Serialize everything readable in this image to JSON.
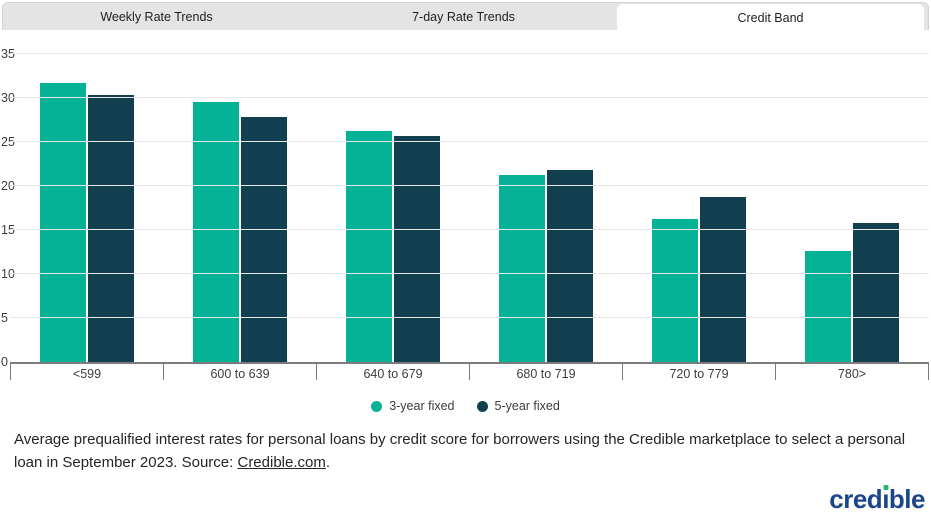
{
  "tabs": {
    "items": [
      {
        "label": "Weekly Rate Trends",
        "active": false
      },
      {
        "label": "7-day Rate Trends",
        "active": false
      },
      {
        "label": "Credit Band",
        "active": true
      }
    ]
  },
  "chart_data": {
    "type": "bar",
    "title": "",
    "categories": [
      "<599",
      "600 to 639",
      "640 to 679",
      "680 to 719",
      "720 to 779",
      "780>"
    ],
    "series": [
      {
        "name": "3-year fixed",
        "color": "#05b296",
        "values": [
          31.7,
          29.5,
          26.3,
          21.2,
          16.2,
          12.6
        ]
      },
      {
        "name": "5-year fixed",
        "color": "#123f4f",
        "values": [
          30.3,
          27.8,
          25.7,
          21.8,
          18.7,
          15.8
        ]
      }
    ],
    "xlabel": "",
    "ylabel": "",
    "ylim": [
      0,
      35
    ],
    "yticks": [
      0,
      5,
      10,
      15,
      20,
      25,
      30,
      35
    ],
    "grid": "horizontal",
    "legend_position": "bottom-center"
  },
  "caption": {
    "text": "Average prequalified interest rates for personal loans by credit score for borrowers using the Credible marketplace to select a personal loan in September 2023. Source: ",
    "link_text": "Credible.com",
    "suffix": "."
  },
  "logo": {
    "text": "credible",
    "part_before_i": "cred",
    "dotless_i": "ı",
    "part_after_i": "ble"
  },
  "colors": {
    "tab_bg": "#e4e4e4",
    "tab_border": "#d4d4d4",
    "grid": "#e7e7e7",
    "axis": "#7c7c7c",
    "text": "#3c3c3c",
    "series_3yr": "#05b296",
    "series_5yr": "#123f4f",
    "logo_blue": "#1b4689",
    "logo_dot": "#25b573"
  }
}
